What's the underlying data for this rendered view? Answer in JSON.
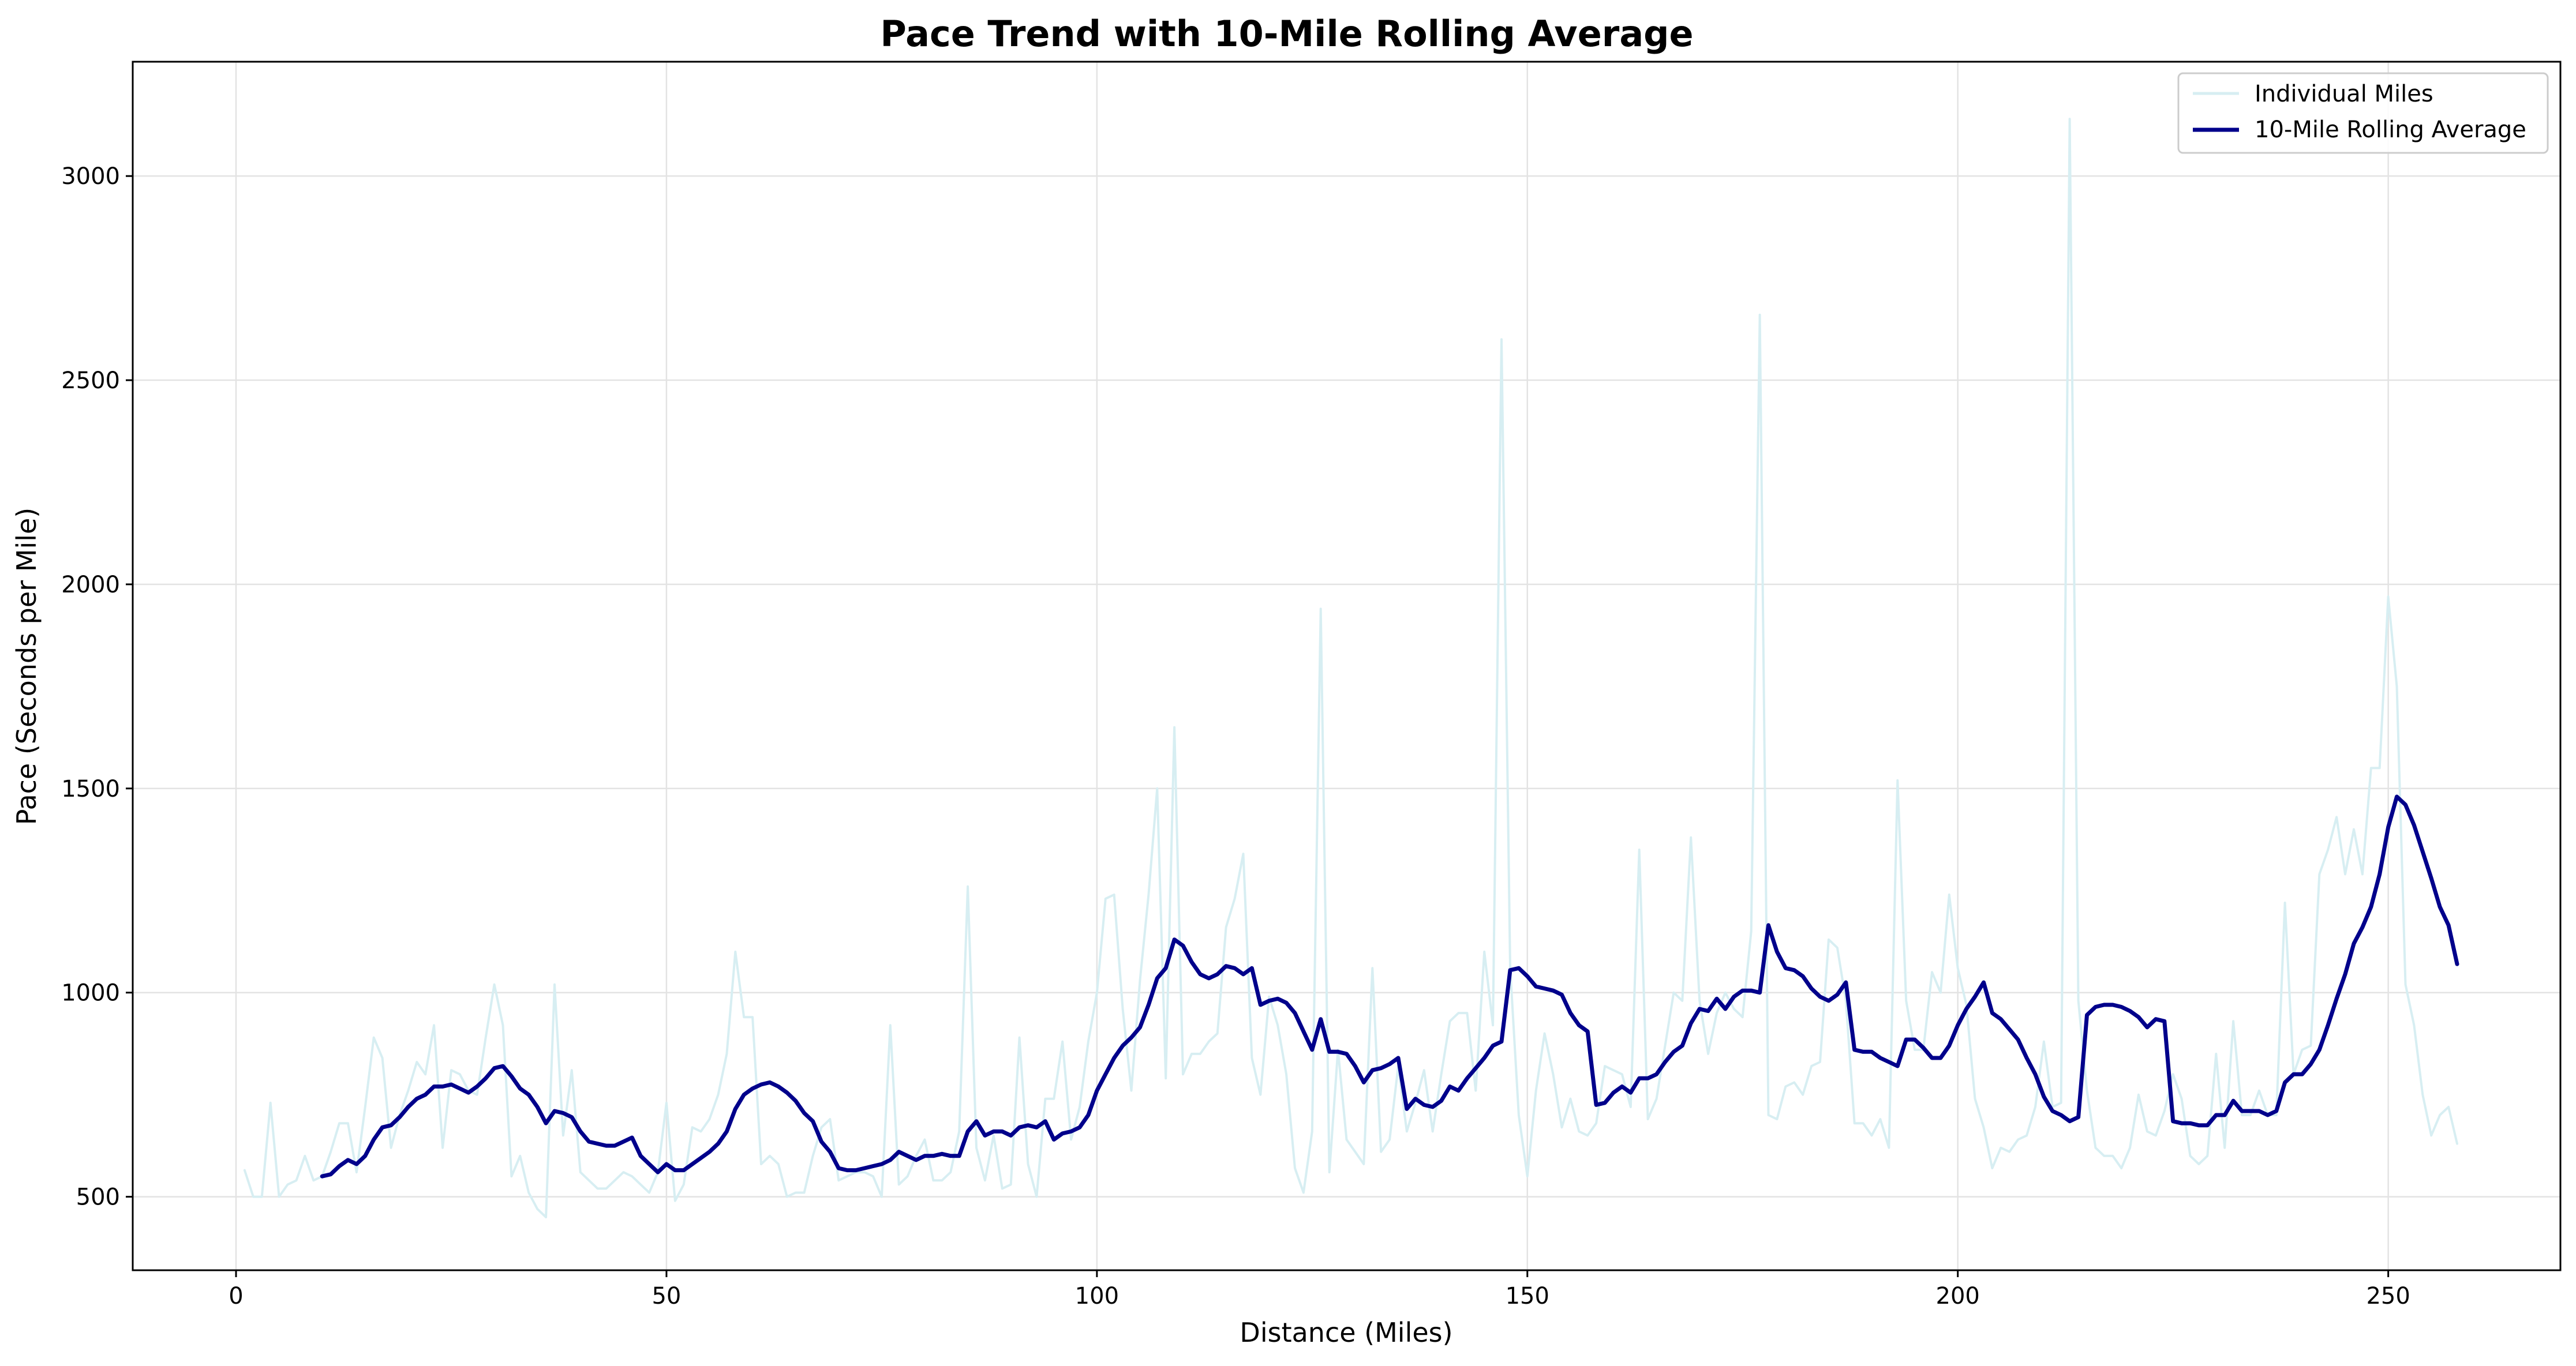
{
  "chart_data": {
    "type": "line",
    "title": "Pace Trend with 10-Mile Rolling Average",
    "xlabel": "Distance (Miles)",
    "ylabel": "Pace (Seconds per Mile)",
    "xlim": [
      -12,
      270
    ],
    "ylim": [
      320,
      3280
    ],
    "xticks": [
      0,
      50,
      100,
      150,
      200,
      250
    ],
    "yticks": [
      500,
      1000,
      1500,
      2000,
      2500,
      3000
    ],
    "grid": true,
    "legend": {
      "placement": "top-right"
    },
    "series": [
      {
        "name": "Individual Miles",
        "color": "#d7eef2",
        "x_start": 1,
        "values": [
          565,
          500,
          500,
          730,
          500,
          530,
          540,
          600,
          540,
          550,
          610,
          680,
          680,
          560,
          720,
          890,
          840,
          620,
          700,
          760,
          830,
          800,
          920,
          620,
          810,
          800,
          760,
          750,
          890,
          1020,
          920,
          550,
          600,
          510,
          470,
          450,
          1020,
          650,
          810,
          560,
          540,
          520,
          520,
          540,
          560,
          550,
          530,
          510,
          560,
          730,
          490,
          530,
          670,
          660,
          690,
          750,
          850,
          1100,
          940,
          940,
          580,
          600,
          580,
          500,
          510,
          510,
          600,
          670,
          690,
          540,
          550,
          560,
          560,
          550,
          500,
          920,
          530,
          550,
          600,
          640,
          540,
          540,
          560,
          660,
          1260,
          620,
          540,
          650,
          520,
          530,
          890,
          580,
          500,
          740,
          740,
          880,
          640,
          720,
          880,
          1000,
          1230,
          1240,
          960,
          760,
          1030,
          1240,
          1500,
          790,
          1650,
          800,
          850,
          850,
          880,
          900,
          1160,
          1230,
          1340,
          840,
          750,
          990,
          920,
          800,
          570,
          510,
          660,
          1940,
          560,
          860,
          640,
          610,
          580,
          1060,
          610,
          640,
          820,
          660,
          730,
          810,
          660,
          800,
          930,
          950,
          950,
          760,
          1100,
          920,
          2600,
          1060,
          700,
          550,
          760,
          900,
          800,
          670,
          740,
          660,
          650,
          680,
          820,
          810,
          800,
          720,
          1350,
          690,
          740,
          870,
          1000,
          980,
          1380,
          980,
          850,
          950,
          1000,
          960,
          940,
          1150,
          2660,
          700,
          690,
          770,
          780,
          750,
          820,
          830,
          1130,
          1110,
          980,
          680,
          680,
          650,
          690,
          620,
          1520,
          980,
          860,
          860,
          1050,
          1000,
          1240,
          1060,
          970,
          740,
          670,
          570,
          620,
          610,
          640,
          650,
          720,
          880,
          720,
          730,
          3140,
          980,
          760,
          620,
          600,
          600,
          570,
          620,
          750,
          660,
          650,
          710,
          800,
          740,
          600,
          580,
          600,
          850,
          620,
          930,
          700,
          700,
          760,
          700,
          700,
          1220,
          800,
          860,
          870,
          1290,
          1350,
          1430,
          1290,
          1400,
          1290,
          1550,
          1550,
          1970,
          1750,
          1020,
          920,
          750,
          650,
          700,
          720,
          630
        ]
      },
      {
        "name": "10-Mile Rolling Average",
        "color": "#00008b",
        "x_start": 10,
        "values": [
          550,
          555,
          575,
          590,
          580,
          600,
          640,
          670,
          675,
          695,
          720,
          740,
          750,
          770,
          770,
          775,
          765,
          755,
          770,
          790,
          815,
          820,
          795,
          765,
          750,
          720,
          680,
          710,
          705,
          695,
          660,
          635,
          630,
          625,
          625,
          635,
          645,
          600,
          580,
          560,
          580,
          565,
          565,
          580,
          595,
          610,
          630,
          660,
          715,
          750,
          765,
          775,
          780,
          770,
          755,
          735,
          705,
          685,
          635,
          610,
          570,
          565,
          565,
          570,
          575,
          580,
          590,
          610,
          600,
          590,
          600,
          600,
          605,
          600,
          600,
          660,
          685,
          650,
          660,
          660,
          650,
          670,
          675,
          670,
          685,
          640,
          655,
          660,
          670,
          700,
          760,
          800,
          840,
          870,
          890,
          915,
          970,
          1035,
          1060,
          1130,
          1115,
          1075,
          1045,
          1035,
          1045,
          1065,
          1060,
          1045,
          1060,
          970,
          980,
          985,
          975,
          950,
          905,
          860,
          935,
          855,
          855,
          850,
          820,
          780,
          810,
          815,
          825,
          840,
          715,
          740,
          725,
          720,
          735,
          770,
          760,
          790,
          815,
          840,
          870,
          880,
          1055,
          1060,
          1040,
          1015,
          1010,
          1005,
          995,
          950,
          920,
          905,
          725,
          730,
          755,
          770,
          755,
          790,
          790,
          800,
          830,
          855,
          870,
          925,
          960,
          955,
          985,
          960,
          990,
          1005,
          1005,
          1000,
          1165,
          1100,
          1060,
          1055,
          1040,
          1010,
          990,
          980,
          995,
          1025,
          860,
          855,
          855,
          840,
          830,
          820,
          885,
          885,
          865,
          840,
          840,
          870,
          920,
          960,
          990,
          1025,
          950,
          935,
          910,
          885,
          840,
          800,
          745,
          710,
          700,
          685,
          695,
          945,
          965,
          970,
          970,
          965,
          955,
          940,
          915,
          935,
          930,
          685,
          680,
          680,
          675,
          675,
          700,
          700,
          735,
          710,
          710,
          710,
          700,
          710,
          780,
          800,
          800,
          825,
          860,
          920,
          985,
          1045,
          1120,
          1160,
          1210,
          1290,
          1405,
          1480,
          1460,
          1410,
          1345,
          1280,
          1210,
          1165,
          1070
        ]
      }
    ]
  }
}
